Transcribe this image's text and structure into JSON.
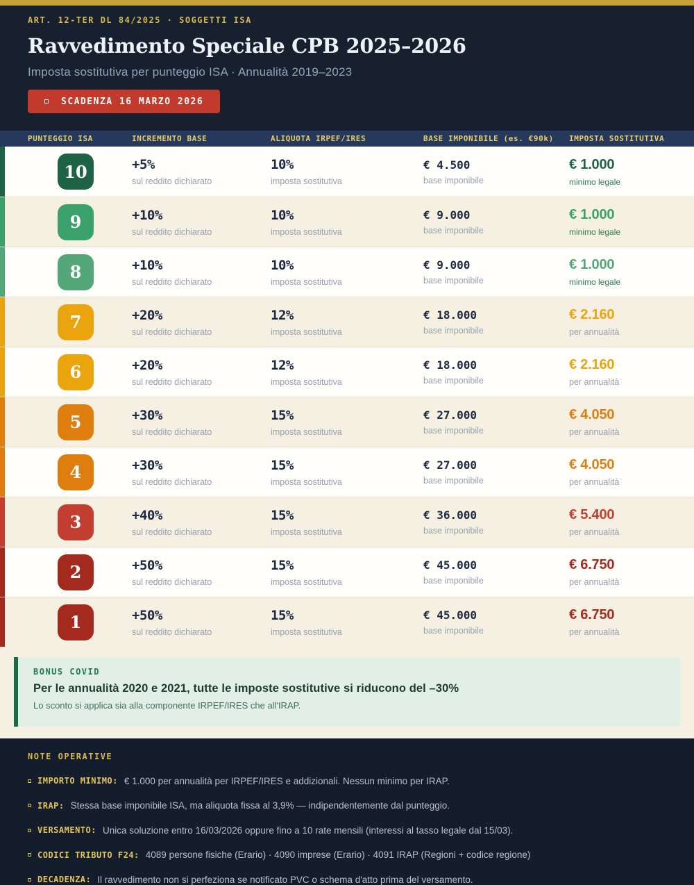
{
  "theme": {
    "gold_bar": "#C8A13A",
    "gold_text": "#D9B84E",
    "gold_text2": "#EACB64",
    "navy_hero": "#16202F",
    "navy_thead": "#24395B",
    "navy_footer": "#141D2B",
    "badge_red": "#C23A2C",
    "row_white": "#FFFEFB",
    "row_cream": "#F6F0E3",
    "separator": "#E7E0D2",
    "text_dark": "#1C2A42",
    "text_gray": "#95A0AE",
    "green_note": "#2D7C50",
    "bonus_bg": "#E1EFE7",
    "bonus_border": "#1A6B44",
    "bonus_label": "#1E7C4B",
    "bonus_title": "#1D3A2C",
    "bonus_text": "#3D7158",
    "footer_text": "#B7C0CD",
    "footer_label": "#E5C45C"
  },
  "header": {
    "eyebrow": "ART. 12-TER DL 84/2025  ·  SOGGETTI ISA",
    "title": "Ravvedimento Speciale CPB 2025–2026",
    "subtitle": "Imposta sostitutiva per punteggio ISA  ·  Annualità 2019–2023",
    "deadline_badge": "SCADENZA 16 MARZO 2026"
  },
  "table": {
    "columns": [
      "PUNTEGGIO ISA",
      "INCREMENTO BASE",
      "ALIQUOTA IRPEF/IRES",
      "BASE IMPONIBILE (es. €90k)",
      "IMPOSTA SOSTITUTIVA"
    ],
    "sublabels": {
      "increment": "sul reddito dichiarato",
      "rate": "imposta sostitutiva",
      "base": "base imponibile"
    },
    "rows": [
      {
        "score": "10",
        "increment": "+5%",
        "rate": "10%",
        "base": "€ 4.500",
        "tax": "€ 1.000",
        "tax_note": "minimo legale",
        "tax_note_green": true,
        "color": "#1E6343"
      },
      {
        "score": "9",
        "increment": "+10%",
        "rate": "10%",
        "base": "€ 9.000",
        "tax": "€ 1.000",
        "tax_note": "minimo legale",
        "tax_note_green": true,
        "color": "#3AA06C"
      },
      {
        "score": "8",
        "increment": "+10%",
        "rate": "10%",
        "base": "€ 9.000",
        "tax": "€ 1.000",
        "tax_note": "minimo legale",
        "tax_note_green": true,
        "color": "#53A678"
      },
      {
        "score": "7",
        "increment": "+20%",
        "rate": "12%",
        "base": "€ 18.000",
        "tax": "€ 2.160",
        "tax_note": "per annualità",
        "tax_note_green": false,
        "color": "#EAA40D"
      },
      {
        "score": "6",
        "increment": "+20%",
        "rate": "12%",
        "base": "€ 18.000",
        "tax": "€ 2.160",
        "tax_note": "per annualità",
        "tax_note_green": false,
        "color": "#EAA40D"
      },
      {
        "score": "5",
        "increment": "+30%",
        "rate": "15%",
        "base": "€ 27.000",
        "tax": "€ 4.050",
        "tax_note": "per annualità",
        "tax_note_green": false,
        "color": "#DD7E0E"
      },
      {
        "score": "4",
        "increment": "+30%",
        "rate": "15%",
        "base": "€ 27.000",
        "tax": "€ 4.050",
        "tax_note": "per annualità",
        "tax_note_green": false,
        "color": "#DD7E0E"
      },
      {
        "score": "3",
        "increment": "+40%",
        "rate": "15%",
        "base": "€ 36.000",
        "tax": "€ 5.400",
        "tax_note": "per annualità",
        "tax_note_green": false,
        "color": "#C23E30"
      },
      {
        "score": "2",
        "increment": "+50%",
        "rate": "15%",
        "base": "€ 45.000",
        "tax": "€ 6.750",
        "tax_note": "per annualità",
        "tax_note_green": false,
        "color": "#A52A1E"
      },
      {
        "score": "1",
        "increment": "+50%",
        "rate": "15%",
        "base": "€ 45.000",
        "tax": "€ 6.750",
        "tax_note": "per annualità",
        "tax_note_green": false,
        "color": "#A52A1E"
      }
    ]
  },
  "bonus": {
    "label": "BONUS COVID",
    "title": "Per le annualità 2020 e 2021, tutte le imposte sostitutive si riducono del  –30%",
    "text": "Lo sconto si applica sia alla componente IRPEF/IRES che all'IRAP."
  },
  "notes": {
    "heading": "NOTE OPERATIVE",
    "items": [
      {
        "label": "IMPORTO MINIMO:",
        "text": "€ 1.000 per annualità per IRPEF/IRES e addizionali. Nessun minimo per IRAP."
      },
      {
        "label": "IRAP:",
        "text": "Stessa base imponibile ISA, ma aliquota fissa al 3,9% — indipendentemente dal punteggio."
      },
      {
        "label": "VERSAMENTO:",
        "text": "Unica soluzione entro 16/03/2026 oppure fino a 10 rate mensili (interessi al tasso legale dal 15/03)."
      },
      {
        "label": "CODICI TRIBUTO F24:",
        "text": "4089 persone fisiche (Erario)  ·  4090 imprese (Erario)  ·  4091 IRAP (Regioni + codice regione)"
      },
      {
        "label": "DECADENZA:",
        "text": "Il ravvedimento non si perfeziona se notificato PVC o schema d'atto prima del versamento."
      }
    ]
  }
}
